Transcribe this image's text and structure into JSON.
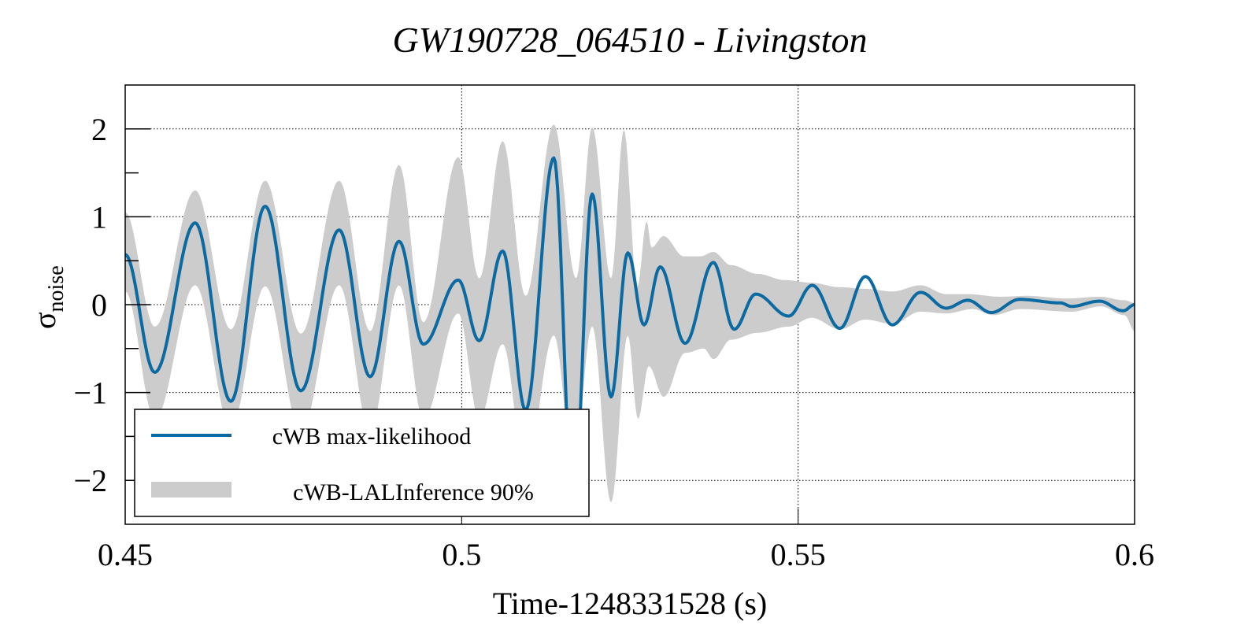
{
  "chart_data": {
    "type": "line",
    "title": "GW190728_064510 - Livingston",
    "xlabel": "Time-1248331528 (s)",
    "ylabel": "σ",
    "ylabel_subscript": "noise",
    "xlim": [
      0.45,
      0.6
    ],
    "ylim": [
      -2.5,
      2.5
    ],
    "grid": true,
    "x_ticks": [
      {
        "value": 0.45,
        "label": "0.45"
      },
      {
        "value": 0.5,
        "label": "0.5"
      },
      {
        "value": 0.55,
        "label": "0.55"
      },
      {
        "value": 0.6,
        "label": "0.6"
      }
    ],
    "y_ticks": [
      {
        "value": 2,
        "label": "2"
      },
      {
        "value": 1,
        "label": "1"
      },
      {
        "value": 0,
        "label": "0"
      },
      {
        "value": -1,
        "label": "−1"
      },
      {
        "value": -2,
        "label": "−2"
      }
    ],
    "y_minor_ticks": [
      1.5,
      0.5,
      -0.5,
      -1.5
    ],
    "legend": {
      "placement": "bottom-left",
      "entries": [
        {
          "label": "cWB max-likelihood",
          "kind": "line",
          "color": "#0b6aa2"
        },
        {
          "label": "cWB-LALInference 90%",
          "kind": "band",
          "color": "#cccccc"
        }
      ]
    },
    "series": [
      {
        "name": "cWB max-likelihood",
        "color": "#0b6aa2",
        "points": [
          [
            0.45,
            0.57
          ],
          [
            0.4544,
            -0.77
          ],
          [
            0.4604,
            0.93
          ],
          [
            0.4657,
            -1.1
          ],
          [
            0.4708,
            1.12
          ],
          [
            0.4761,
            -0.98
          ],
          [
            0.4818,
            0.85
          ],
          [
            0.4864,
            -0.82
          ],
          [
            0.4907,
            0.72
          ],
          [
            0.4943,
            -0.45
          ],
          [
            0.4995,
            0.28
          ],
          [
            0.5026,
            -0.41
          ],
          [
            0.5061,
            0.61
          ],
          [
            0.5095,
            -1.2
          ],
          [
            0.5137,
            1.67
          ],
          [
            0.5166,
            -2.3
          ],
          [
            0.5194,
            1.26
          ],
          [
            0.5222,
            -1.05
          ],
          [
            0.5247,
            0.59
          ],
          [
            0.5271,
            -0.23
          ],
          [
            0.5295,
            0.43
          ],
          [
            0.5332,
            -0.44
          ],
          [
            0.5374,
            0.48
          ],
          [
            0.5405,
            -0.28
          ],
          [
            0.5437,
            0.12
          ],
          [
            0.5486,
            -0.13
          ],
          [
            0.5521,
            0.22
          ],
          [
            0.5562,
            -0.27
          ],
          [
            0.56,
            0.32
          ],
          [
            0.564,
            -0.23
          ],
          [
            0.5682,
            0.14
          ],
          [
            0.572,
            -0.04
          ],
          [
            0.5752,
            0.05
          ],
          [
            0.5787,
            -0.09
          ],
          [
            0.5829,
            0.06
          ],
          [
            0.589,
            0.02
          ],
          [
            0.5906,
            -0.02
          ],
          [
            0.5948,
            0.04
          ],
          [
            0.5983,
            -0.07
          ],
          [
            0.6,
            0.0
          ]
        ]
      }
    ],
    "band": {
      "name": "cWB-LALInference 90%",
      "color": "#cccccc",
      "upper": [
        [
          0.45,
          1.05
        ],
        [
          0.4544,
          -0.25
        ],
        [
          0.4604,
          1.3
        ],
        [
          0.4657,
          -0.28
        ],
        [
          0.4708,
          1.41
        ],
        [
          0.4761,
          -0.33
        ],
        [
          0.4818,
          1.41
        ],
        [
          0.4864,
          -0.3
        ],
        [
          0.4907,
          1.59
        ],
        [
          0.4943,
          -0.2
        ],
        [
          0.4995,
          1.68
        ],
        [
          0.5026,
          0.3
        ],
        [
          0.5061,
          1.86
        ],
        [
          0.5095,
          0.1
        ],
        [
          0.5137,
          2.05
        ],
        [
          0.517,
          0.3
        ],
        [
          0.5194,
          2.02
        ],
        [
          0.5222,
          0.3
        ],
        [
          0.5241,
          1.99
        ],
        [
          0.5261,
          0.2
        ],
        [
          0.5275,
          0.95
        ],
        [
          0.5282,
          0.65
        ],
        [
          0.53,
          0.78
        ],
        [
          0.533,
          0.55
        ],
        [
          0.5355,
          0.55
        ],
        [
          0.5374,
          0.6
        ],
        [
          0.54,
          0.45
        ],
        [
          0.544,
          0.35
        ],
        [
          0.548,
          0.28
        ],
        [
          0.552,
          0.25
        ],
        [
          0.556,
          0.2
        ],
        [
          0.56,
          0.18
        ],
        [
          0.564,
          0.15
        ],
        [
          0.5682,
          0.22
        ],
        [
          0.572,
          0.12
        ],
        [
          0.5752,
          0.12
        ],
        [
          0.58,
          0.09
        ],
        [
          0.584,
          0.1
        ],
        [
          0.59,
          0.07
        ],
        [
          0.5948,
          0.09
        ],
        [
          0.5985,
          0.05
        ],
        [
          0.6,
          0.02
        ]
      ],
      "lower": [
        [
          0.45,
          0.15
        ],
        [
          0.4544,
          -1.3
        ],
        [
          0.4604,
          0.22
        ],
        [
          0.4657,
          -1.4
        ],
        [
          0.4708,
          0.21
        ],
        [
          0.4761,
          -1.45
        ],
        [
          0.4818,
          0.22
        ],
        [
          0.4864,
          -1.45
        ],
        [
          0.4907,
          0.22
        ],
        [
          0.4943,
          -1.3
        ],
        [
          0.4995,
          -0.1
        ],
        [
          0.5026,
          -1.3
        ],
        [
          0.5061,
          -0.45
        ],
        [
          0.5095,
          -1.9
        ],
        [
          0.5137,
          -0.35
        ],
        [
          0.5166,
          -1.8
        ],
        [
          0.5194,
          -0.25
        ],
        [
          0.5222,
          -2.25
        ],
        [
          0.5247,
          -0.35
        ],
        [
          0.5262,
          -1.3
        ],
        [
          0.5278,
          -0.7
        ],
        [
          0.53,
          -1.05
        ],
        [
          0.5332,
          -0.55
        ],
        [
          0.536,
          -0.5
        ],
        [
          0.5374,
          -0.62
        ],
        [
          0.54,
          -0.4
        ],
        [
          0.544,
          -0.32
        ],
        [
          0.5486,
          -0.25
        ],
        [
          0.552,
          -0.15
        ],
        [
          0.5562,
          -0.28
        ],
        [
          0.56,
          -0.17
        ],
        [
          0.564,
          -0.22
        ],
        [
          0.5682,
          -0.08
        ],
        [
          0.572,
          -0.1
        ],
        [
          0.576,
          -0.05
        ],
        [
          0.579,
          -0.12
        ],
        [
          0.583,
          -0.05
        ],
        [
          0.5906,
          -0.08
        ],
        [
          0.595,
          -0.02
        ],
        [
          0.5985,
          -0.12
        ],
        [
          0.6,
          -0.3
        ]
      ]
    }
  }
}
